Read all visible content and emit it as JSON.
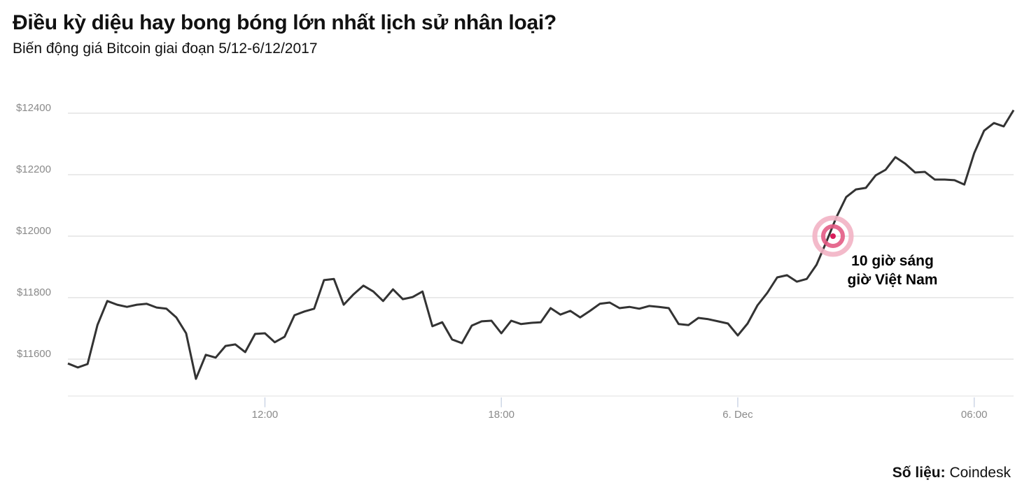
{
  "title": "Điều kỳ diệu hay bong bóng lớn nhất lịch sử nhân loại?",
  "subtitle": "Biến động giá Bitcoin giai đoạn 5/12-6/12/2017",
  "source": {
    "label": "Số liệu:",
    "value": "Coindesk"
  },
  "chart_data": {
    "type": "line",
    "title": "Điều kỳ diệu hay bong bóng lớn nhất lịch sử nhân loại?",
    "subtitle": "Biến động giá Bitcoin giai đoạn 5/12-6/12/2017",
    "xlabel": "",
    "ylabel": "",
    "ylim": [
      11480,
      12420
    ],
    "xlim": [
      "2017-12-05 07:00",
      "2017-12-06 07:00"
    ],
    "grid": true,
    "line_color": "#333333",
    "y_ticks": [
      {
        "value": 11600,
        "label": "$11600"
      },
      {
        "value": 11800,
        "label": "$11800"
      },
      {
        "value": 12000,
        "label": "$12000"
      },
      {
        "value": 12200,
        "label": "$12200"
      },
      {
        "value": 12400,
        "label": "$12400"
      }
    ],
    "x_ticks": [
      {
        "value": "2017-12-05 12:00",
        "label": "12:00"
      },
      {
        "value": "2017-12-05 18:00",
        "label": "18:00"
      },
      {
        "value": "2017-12-06 00:00",
        "label": "6. Dec"
      },
      {
        "value": "2017-12-06 06:00",
        "label": "06:00"
      }
    ],
    "x": [
      "2017-12-05 07:00",
      "2017-12-05 07:15",
      "2017-12-05 07:30",
      "2017-12-05 07:45",
      "2017-12-05 08:00",
      "2017-12-05 08:15",
      "2017-12-05 08:30",
      "2017-12-05 08:45",
      "2017-12-05 09:00",
      "2017-12-05 09:15",
      "2017-12-05 09:30",
      "2017-12-05 09:45",
      "2017-12-05 10:00",
      "2017-12-05 10:15",
      "2017-12-05 10:30",
      "2017-12-05 10:45",
      "2017-12-05 11:00",
      "2017-12-05 11:15",
      "2017-12-05 11:30",
      "2017-12-05 11:45",
      "2017-12-05 12:00",
      "2017-12-05 12:15",
      "2017-12-05 12:30",
      "2017-12-05 12:45",
      "2017-12-05 13:00",
      "2017-12-05 13:15",
      "2017-12-05 13:30",
      "2017-12-05 13:45",
      "2017-12-05 14:00",
      "2017-12-05 14:15",
      "2017-12-05 14:30",
      "2017-12-05 14:45",
      "2017-12-05 15:00",
      "2017-12-05 15:15",
      "2017-12-05 15:30",
      "2017-12-05 15:45",
      "2017-12-05 16:00",
      "2017-12-05 16:15",
      "2017-12-05 16:30",
      "2017-12-05 16:45",
      "2017-12-05 17:00",
      "2017-12-05 17:15",
      "2017-12-05 17:30",
      "2017-12-05 17:45",
      "2017-12-05 18:00",
      "2017-12-05 18:15",
      "2017-12-05 18:30",
      "2017-12-05 18:45",
      "2017-12-05 19:00",
      "2017-12-05 19:15",
      "2017-12-05 19:30",
      "2017-12-05 19:45",
      "2017-12-05 20:00",
      "2017-12-05 20:15",
      "2017-12-05 20:30",
      "2017-12-05 20:45",
      "2017-12-05 21:00",
      "2017-12-05 21:15",
      "2017-12-05 21:30",
      "2017-12-05 21:45",
      "2017-12-05 22:00",
      "2017-12-05 22:15",
      "2017-12-05 22:30",
      "2017-12-05 22:45",
      "2017-12-05 23:00",
      "2017-12-05 23:15",
      "2017-12-05 23:30",
      "2017-12-05 23:45",
      "2017-12-06 00:00",
      "2017-12-06 00:15",
      "2017-12-06 00:30",
      "2017-12-06 00:45",
      "2017-12-06 01:00",
      "2017-12-06 01:15",
      "2017-12-06 01:30",
      "2017-12-06 01:45",
      "2017-12-06 02:00",
      "2017-12-06 02:15",
      "2017-12-06 02:30",
      "2017-12-06 02:45",
      "2017-12-06 03:00",
      "2017-12-06 03:15",
      "2017-12-06 03:30",
      "2017-12-06 03:45",
      "2017-12-06 04:00",
      "2017-12-06 04:15",
      "2017-12-06 04:30",
      "2017-12-06 04:45",
      "2017-12-06 05:00",
      "2017-12-06 05:15",
      "2017-12-06 05:30",
      "2017-12-06 05:45",
      "2017-12-06 06:00",
      "2017-12-06 06:15",
      "2017-12-06 06:30",
      "2017-12-06 06:45",
      "2017-12-06 07:00"
    ],
    "values": [
      11586,
      11573,
      11584,
      11711,
      11789,
      11777,
      11770,
      11777,
      11780,
      11768,
      11764,
      11736,
      11684,
      11536,
      11614,
      11605,
      11643,
      11648,
      11623,
      11682,
      11684,
      11655,
      11673,
      11743,
      11755,
      11764,
      11857,
      11861,
      11777,
      11811,
      11839,
      11820,
      11789,
      11827,
      11795,
      11802,
      11820,
      11707,
      11720,
      11664,
      11652,
      11709,
      11723,
      11725,
      11684,
      11725,
      11714,
      11718,
      11720,
      11766,
      11745,
      11757,
      11736,
      11757,
      11780,
      11784,
      11766,
      11770,
      11764,
      11773,
      11770,
      11766,
      11714,
      11711,
      11734,
      11730,
      11723,
      11716,
      11677,
      11716,
      11775,
      11816,
      11866,
      11873,
      11852,
      11861,
      11907,
      11982,
      12061,
      12127,
      12152,
      12157,
      12198,
      12216,
      12257,
      12236,
      12207,
      12209,
      12184,
      12184,
      12182,
      12168,
      12270,
      12343,
      12368,
      12357,
      12410
    ],
    "annotations": [
      {
        "x": "2017-12-06 02:25",
        "y": 12000,
        "lines": [
          "10 giờ sáng",
          "giờ Việt Nam"
        ],
        "marker": "target",
        "colors": {
          "outer": "#f2b3c4",
          "middle": "#e35b84",
          "center": "#d81e5b"
        }
      }
    ]
  }
}
